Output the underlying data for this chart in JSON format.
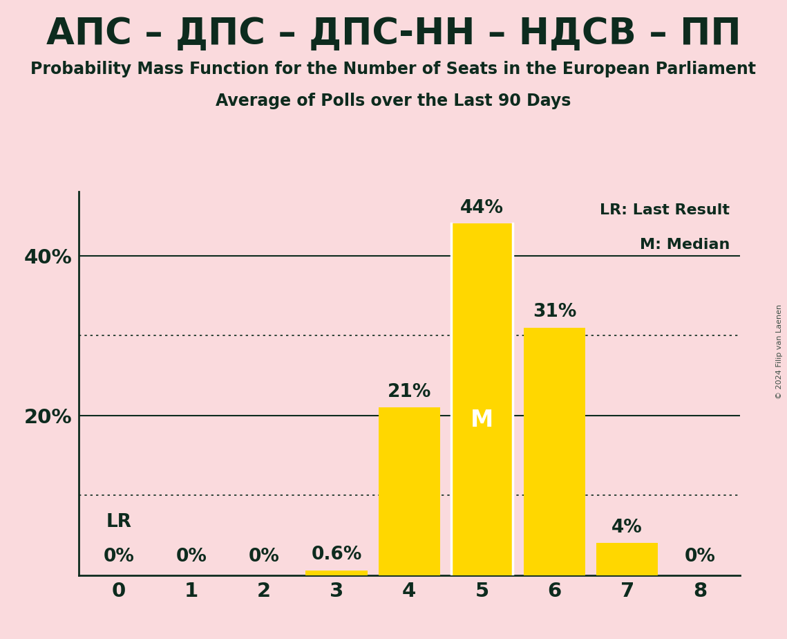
{
  "title_line1": "АПС – ДПС – ДПС-НН – НДСВ – ПП",
  "title_line2": "Probability Mass Function for the Number of Seats in the European Parliament",
  "title_line3": "Average of Polls over the Last 90 Days",
  "categories": [
    0,
    1,
    2,
    3,
    4,
    5,
    6,
    7,
    8
  ],
  "values": [
    0.0,
    0.0,
    0.0,
    0.6,
    21.0,
    44.0,
    31.0,
    4.0,
    0.0
  ],
  "bar_color": "#FFD700",
  "background_color": "#FADADD",
  "text_color": "#0D2B1E",
  "median_seat": 5,
  "median_label": "M",
  "median_label_color": "#FFFFFF",
  "lr_seat": 0,
  "lr_label": "LR",
  "solid_yticks": [
    20,
    40
  ],
  "dotted_yticks": [
    10,
    30
  ],
  "legend_lr": "LR: Last Result",
  "legend_m": "M: Median",
  "watermark": "© 2024 Filip van Laenen",
  "ylim": [
    0,
    48
  ],
  "xlim": [
    -0.55,
    8.55
  ]
}
